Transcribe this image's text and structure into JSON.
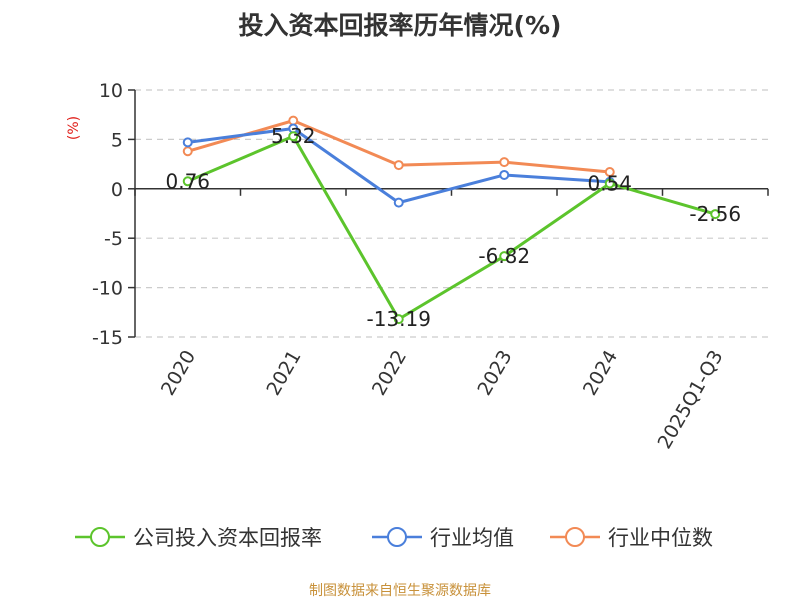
{
  "chart_data": {
    "type": "line",
    "title": "投入资本回报率历年情况(%)",
    "ylabel": "(%)",
    "categories": [
      "2020",
      "2021",
      "2022",
      "2023",
      "2024",
      "2025Q1-Q3"
    ],
    "ylim": [
      -15,
      10
    ],
    "yticks": [
      10,
      5,
      0,
      -5,
      -10,
      -15
    ],
    "grid": true,
    "legend_position": "bottom",
    "series": [
      {
        "name": "公司投入资本回报率",
        "color": "#5cc42c",
        "values": [
          0.76,
          5.32,
          -13.19,
          -6.82,
          0.54,
          -2.56
        ],
        "labels": [
          "0.76",
          "5.32",
          "-13.19",
          "-6.82",
          "0.54",
          "-2.56"
        ]
      },
      {
        "name": "行业均值",
        "color": "#4a7fdb",
        "values": [
          4.7,
          6.1,
          -1.4,
          1.4,
          0.7,
          null
        ]
      },
      {
        "name": "行业中位数",
        "color": "#f28a55",
        "values": [
          3.8,
          6.9,
          2.4,
          2.7,
          1.7,
          null
        ]
      }
    ]
  },
  "footer": "制图数据来自恒生聚源数据库"
}
